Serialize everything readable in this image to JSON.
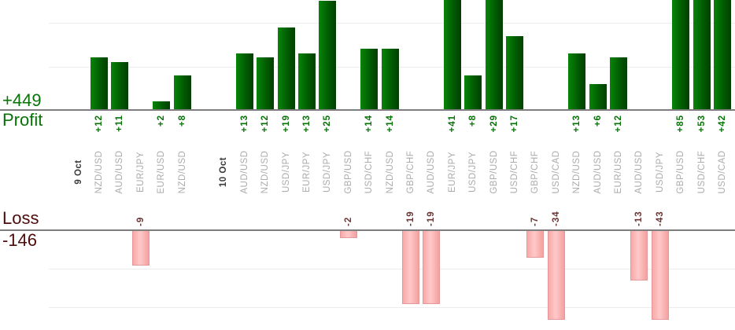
{
  "axis": {
    "profit_total": "+449",
    "profit_axis_label": "Profit",
    "loss_axis_label": "Loss",
    "loss_total": "-146"
  },
  "colors": {
    "profit_text": "#077307",
    "loss_total_text": "#4d0c0c",
    "loss_value_text": "#6b3434",
    "pair_label_text": "#ababab",
    "date_label_text": "#3a3a3a",
    "bar_green_light": "#078507",
    "bar_green_dark": "#013e01",
    "bar_pink_light": "#ffc9c9",
    "bar_pink_dark": "#f4a0a0",
    "bar_pink_border": "#e49898",
    "baseline": "#7e7e7e",
    "gridline": "#ededed"
  },
  "chart_data": {
    "type": "bar",
    "title": "",
    "description": "Per-trade forex profit/loss by currency pair, grouped by date. Profits are green bars above the Profit axis; losses are pink bars below the Loss axis. Tall bars are clipped by the visible plot area.",
    "profit_axis": {
      "label": "Profit",
      "total": 449,
      "gridline_step": 10,
      "visible_max": 25
    },
    "loss_axis": {
      "label": "Loss",
      "total": -146,
      "gridline_step": 10,
      "visible_min": -23
    },
    "legend": "none",
    "entries": [
      {
        "kind": "date",
        "label": "9 Oct"
      },
      {
        "kind": "trade",
        "label": "NZD/USD",
        "value": 12
      },
      {
        "kind": "trade",
        "label": "AUD/USD",
        "value": 11
      },
      {
        "kind": "trade",
        "label": "EUR/JPY",
        "value": -9
      },
      {
        "kind": "trade",
        "label": "EUR/USD",
        "value": 2
      },
      {
        "kind": "trade",
        "label": "NZD/USD",
        "value": 8
      },
      {
        "kind": "spacer"
      },
      {
        "kind": "date",
        "label": "10 Oct"
      },
      {
        "kind": "trade",
        "label": "AUD/USD",
        "value": 13
      },
      {
        "kind": "trade",
        "label": "NZD/USD",
        "value": 12
      },
      {
        "kind": "trade",
        "label": "USD/JPY",
        "value": 19
      },
      {
        "kind": "trade",
        "label": "EUR/JPY",
        "value": 13
      },
      {
        "kind": "trade",
        "label": "USD/JPY",
        "value": 25
      },
      {
        "kind": "trade",
        "label": "GBP/USD",
        "value": -2
      },
      {
        "kind": "trade",
        "label": "USD/CHF",
        "value": 14
      },
      {
        "kind": "trade",
        "label": "NZD/USD",
        "value": 14
      },
      {
        "kind": "trade",
        "label": "GBP/CHF",
        "value": -19
      },
      {
        "kind": "trade",
        "label": "AUD/USD",
        "value": -19
      },
      {
        "kind": "trade",
        "label": "EUR/JPY",
        "value": 41
      },
      {
        "kind": "trade",
        "label": "USD/JPY",
        "value": 8
      },
      {
        "kind": "trade",
        "label": "GBP/USD",
        "value": 29
      },
      {
        "kind": "trade",
        "label": "USD/CHF",
        "value": 17
      },
      {
        "kind": "trade",
        "label": "GBP/CHF",
        "value": -7
      },
      {
        "kind": "trade",
        "label": "USD/CAD",
        "value": -34
      },
      {
        "kind": "trade",
        "label": "NZD/USD",
        "value": 13
      },
      {
        "kind": "trade",
        "label": "AUD/USD",
        "value": 6
      },
      {
        "kind": "trade",
        "label": "EUR/USD",
        "value": 12
      },
      {
        "kind": "trade",
        "label": "AUD/USD",
        "value": -13
      },
      {
        "kind": "trade",
        "label": "USD/JPY",
        "value": -43
      },
      {
        "kind": "trade",
        "label": "GBP/USD",
        "value": 85
      },
      {
        "kind": "trade",
        "label": "USD/CHF",
        "value": 53
      },
      {
        "kind": "trade",
        "label": "USD/CAD",
        "value": 42
      }
    ]
  }
}
